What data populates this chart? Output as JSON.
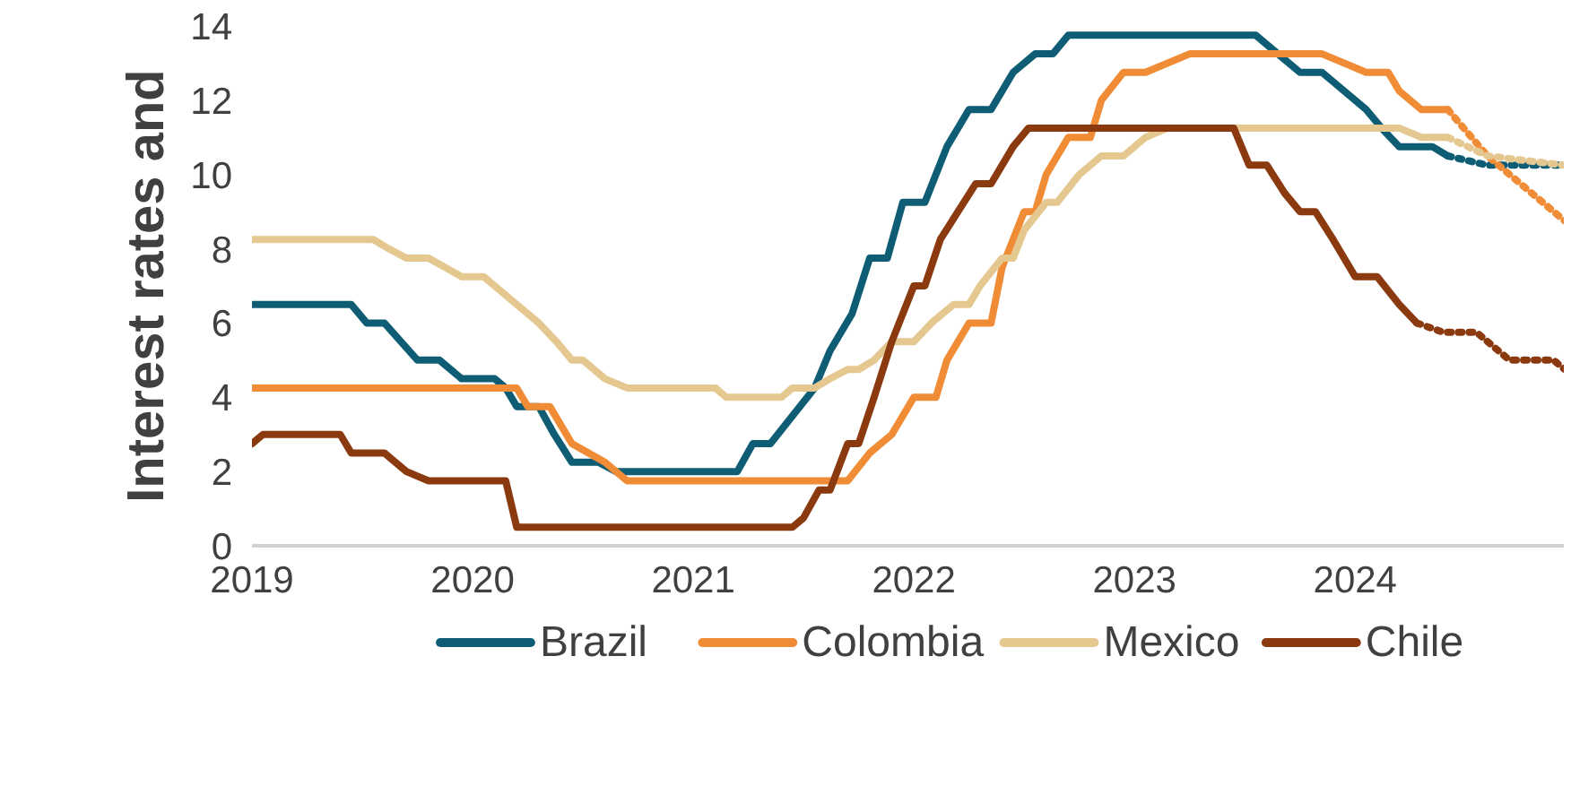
{
  "chart_data": {
    "type": "line",
    "ylabel": "Interest rates and",
    "xlim": [
      2019,
      2024.95
    ],
    "ylim": [
      0,
      14
    ],
    "xticks": [
      2019,
      2020,
      2021,
      2022,
      2023,
      2024
    ],
    "yticks": [
      0,
      2,
      4,
      6,
      8,
      10,
      12,
      14
    ],
    "grid": false,
    "legend": "bottom",
    "series": [
      {
        "name": "Brazil",
        "color": "#0f5d74",
        "line_style": "solid",
        "x": [
          2019.0,
          2019.45,
          2019.52,
          2019.6,
          2019.75,
          2019.85,
          2019.95,
          2020.1,
          2020.15,
          2020.2,
          2020.3,
          2020.37,
          2020.45,
          2020.57,
          2020.65,
          2021.2,
          2021.27,
          2021.35,
          2021.45,
          2021.55,
          2021.62,
          2021.72,
          2021.8,
          2021.88,
          2021.95,
          2022.05,
          2022.15,
          2022.25,
          2022.35,
          2022.45,
          2022.55,
          2022.63,
          2022.7,
          2023.55,
          2023.65,
          2023.75,
          2023.85,
          2023.95,
          2024.05,
          2024.12,
          2024.2,
          2024.35,
          2024.42
        ],
        "values": [
          6.5,
          6.5,
          6.0,
          6.0,
          5.0,
          5.0,
          4.5,
          4.5,
          4.25,
          3.75,
          3.75,
          3.0,
          2.25,
          2.25,
          2.0,
          2.0,
          2.75,
          2.75,
          3.5,
          4.25,
          5.25,
          6.25,
          7.75,
          7.75,
          9.25,
          9.25,
          10.75,
          11.75,
          11.75,
          12.75,
          13.25,
          13.25,
          13.75,
          13.75,
          13.25,
          12.75,
          12.75,
          12.25,
          11.75,
          11.25,
          10.75,
          10.75,
          10.5
        ]
      },
      {
        "name": "Colombia",
        "color": "#f08c36",
        "line_style": "solid",
        "x": [
          2019.0,
          2020.2,
          2020.25,
          2020.35,
          2020.45,
          2020.6,
          2020.7,
          2021.7,
          2021.8,
          2021.9,
          2022.0,
          2022.1,
          2022.15,
          2022.25,
          2022.35,
          2022.4,
          2022.5,
          2022.55,
          2022.6,
          2022.7,
          2022.8,
          2022.85,
          2022.95,
          2023.05,
          2023.25,
          2023.85,
          2023.95,
          2024.05,
          2024.15,
          2024.2,
          2024.3,
          2024.42
        ],
        "values": [
          4.25,
          4.25,
          3.75,
          3.75,
          2.75,
          2.25,
          1.75,
          1.75,
          2.5,
          3.0,
          4.0,
          4.0,
          5.0,
          6.0,
          6.0,
          7.5,
          9.0,
          9.0,
          10.0,
          11.0,
          11.0,
          12.0,
          12.75,
          12.75,
          13.25,
          13.25,
          13.0,
          12.75,
          12.75,
          12.25,
          11.75,
          11.75
        ]
      },
      {
        "name": "Mexico",
        "color": "#e5c890",
        "line_style": "solid",
        "x": [
          2019.0,
          2019.55,
          2019.62,
          2019.7,
          2019.8,
          2019.95,
          2020.05,
          2020.1,
          2020.2,
          2020.3,
          2020.38,
          2020.45,
          2020.5,
          2020.6,
          2020.7,
          2021.1,
          2021.15,
          2021.4,
          2021.45,
          2021.55,
          2021.62,
          2021.7,
          2021.75,
          2021.82,
          2021.9,
          2022.0,
          2022.08,
          2022.18,
          2022.25,
          2022.3,
          2022.4,
          2022.45,
          2022.5,
          2022.6,
          2022.65,
          2022.75,
          2022.85,
          2022.95,
          2023.05,
          2023.15,
          2024.2,
          2024.3,
          2024.42
        ],
        "values": [
          8.25,
          8.25,
          8.0,
          7.75,
          7.75,
          7.25,
          7.25,
          7.0,
          6.5,
          6.0,
          5.5,
          5.0,
          5.0,
          4.5,
          4.25,
          4.25,
          4.0,
          4.0,
          4.25,
          4.25,
          4.5,
          4.75,
          4.75,
          5.0,
          5.5,
          5.5,
          6.0,
          6.5,
          6.5,
          7.0,
          7.75,
          7.75,
          8.5,
          9.25,
          9.25,
          10.0,
          10.5,
          10.5,
          11.0,
          11.25,
          11.25,
          11.0,
          11.0
        ]
      },
      {
        "name": "Chile",
        "color": "#8b3a0f",
        "line_style": "solid",
        "x": [
          2019.0,
          2019.05,
          2019.4,
          2019.45,
          2019.6,
          2019.7,
          2019.8,
          2020.15,
          2020.2,
          2021.45,
          2021.5,
          2021.57,
          2021.62,
          2021.7,
          2021.75,
          2021.82,
          2021.9,
          2022.0,
          2022.05,
          2022.12,
          2022.2,
          2022.28,
          2022.35,
          2022.45,
          2022.52,
          2023.45,
          2023.52,
          2023.6,
          2023.68,
          2023.75,
          2023.82,
          2023.9,
          2024.0,
          2024.1,
          2024.2,
          2024.28
        ],
        "values": [
          2.75,
          3.0,
          3.0,
          2.5,
          2.5,
          2.0,
          1.75,
          1.75,
          0.5,
          0.5,
          0.75,
          1.5,
          1.5,
          2.75,
          2.75,
          4.0,
          5.5,
          7.0,
          7.0,
          8.25,
          9.0,
          9.75,
          9.75,
          10.75,
          11.25,
          11.25,
          10.25,
          10.25,
          9.5,
          9.0,
          9.0,
          8.25,
          7.25,
          7.25,
          6.5,
          6.0
        ]
      },
      {
        "color": "#0f5d74",
        "line_style": "dotted",
        "x": [
          2024.42,
          2024.6,
          2024.95
        ],
        "values": [
          10.5,
          10.25,
          10.25
        ]
      },
      {
        "color": "#f08c36",
        "line_style": "dotted",
        "x": [
          2024.42,
          2024.6,
          2024.8,
          2024.95
        ],
        "values": [
          11.75,
          10.5,
          9.5,
          8.75
        ]
      },
      {
        "color": "#e5c890",
        "line_style": "dotted",
        "x": [
          2024.42,
          2024.6,
          2024.95
        ],
        "values": [
          11.0,
          10.5,
          10.25
        ]
      },
      {
        "color": "#8b3a0f",
        "line_style": "dotted",
        "x": [
          2024.28,
          2024.4,
          2024.55,
          2024.7,
          2024.9,
          2024.95
        ],
        "values": [
          6.0,
          5.75,
          5.75,
          5.0,
          5.0,
          4.75
        ]
      }
    ]
  }
}
